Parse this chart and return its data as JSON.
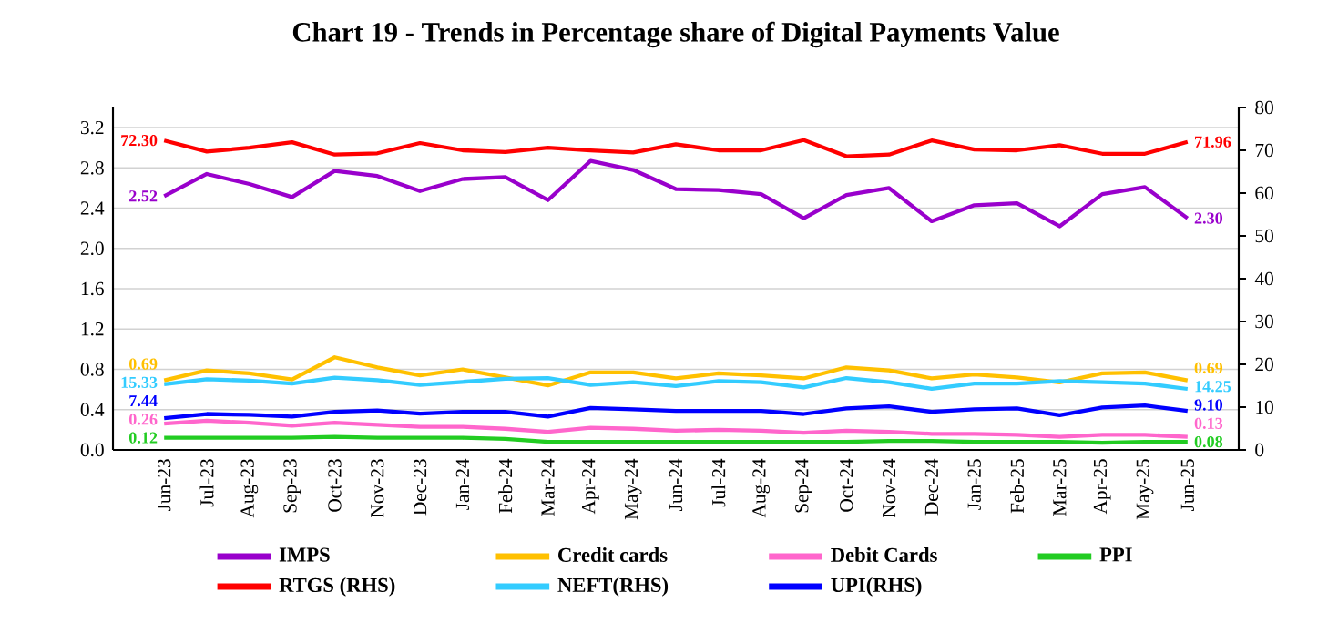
{
  "chart_data": {
    "type": "line",
    "title": "Chart 19 - Trends in Percentage share of Digital Payments Value",
    "categories": [
      "Jun-23",
      "Jul-23",
      "Aug-23",
      "Sep-23",
      "Oct-23",
      "Nov-23",
      "Dec-23",
      "Jan-24",
      "Feb-24",
      "Mar-24",
      "Apr-24",
      "May-24",
      "Jun-24",
      "Jul-24",
      "Aug-24",
      "Sep-24",
      "Oct-24",
      "Nov-24",
      "Dec-24",
      "Jan-25",
      "Feb-25",
      "Mar-25",
      "Apr-25",
      "May-25",
      "Jun-25"
    ],
    "series": [
      {
        "name": "IMPS",
        "color": "#9900cc",
        "values": [
          2.52,
          2.74,
          2.64,
          2.51,
          2.77,
          2.72,
          2.57,
          2.69,
          2.71,
          2.48,
          2.87,
          2.78,
          2.59,
          2.58,
          2.54,
          2.3,
          2.53,
          2.6,
          2.27,
          2.43,
          2.45,
          2.22,
          2.54,
          2.61,
          2.3
        ],
        "value_labels": [
          "2.52",
          null,
          null,
          null,
          null,
          null,
          null,
          null,
          null,
          null,
          null,
          null,
          null,
          null,
          null,
          null,
          null,
          null,
          null,
          null,
          null,
          null,
          null,
          null,
          "2.30"
        ]
      },
      {
        "name": "Credit cards",
        "color": "#ffc000",
        "values": [
          0.69,
          0.79,
          0.76,
          0.7,
          0.92,
          0.82,
          0.74,
          0.8,
          0.72,
          0.64,
          0.77,
          0.77,
          0.71,
          0.76,
          0.74,
          0.71,
          0.82,
          0.79,
          0.71,
          0.75,
          0.72,
          0.67,
          0.76,
          0.77,
          0.69
        ],
        "value_labels": [
          "0.69",
          null,
          null,
          null,
          null,
          null,
          null,
          null,
          null,
          null,
          null,
          null,
          null,
          null,
          null,
          null,
          null,
          null,
          null,
          null,
          null,
          null,
          null,
          null,
          "0.69"
        ]
      },
      {
        "name": "Debit Cards",
        "color": "#ff66cc",
        "values": [
          0.26,
          0.29,
          0.27,
          0.24,
          0.27,
          0.25,
          0.23,
          0.23,
          0.21,
          0.18,
          0.22,
          0.21,
          0.19,
          0.2,
          0.19,
          0.17,
          0.19,
          0.18,
          0.16,
          0.16,
          0.15,
          0.13,
          0.15,
          0.15,
          0.13
        ],
        "value_labels": [
          "0.26",
          null,
          null,
          null,
          null,
          null,
          null,
          null,
          null,
          null,
          null,
          null,
          null,
          null,
          null,
          null,
          null,
          null,
          null,
          null,
          null,
          null,
          null,
          null,
          "0.13"
        ]
      },
      {
        "name": "PPI",
        "color": "#22cc22",
        "values": [
          0.12,
          0.12,
          0.12,
          0.12,
          0.13,
          0.12,
          0.12,
          0.12,
          0.11,
          0.08,
          0.08,
          0.08,
          0.08,
          0.08,
          0.08,
          0.08,
          0.08,
          0.09,
          0.09,
          0.08,
          0.08,
          0.08,
          0.07,
          0.08,
          0.08
        ],
        "value_labels": [
          "0.12",
          null,
          null,
          null,
          null,
          null,
          null,
          null,
          null,
          null,
          null,
          null,
          null,
          null,
          null,
          null,
          null,
          null,
          null,
          null,
          null,
          null,
          null,
          null,
          "0.08"
        ]
      },
      {
        "name": "RTGS (RHS)",
        "color": "#ff0000",
        "axis": "y2",
        "values": [
          72.3,
          69.7,
          70.6,
          71.9,
          69.0,
          69.3,
          71.7,
          70.0,
          69.6,
          70.6,
          70.0,
          69.5,
          71.4,
          70.0,
          70.0,
          72.4,
          68.6,
          69.0,
          72.3,
          70.2,
          70.0,
          71.2,
          69.2,
          69.2,
          71.96
        ],
        "value_labels": [
          "72.30",
          null,
          null,
          null,
          null,
          null,
          null,
          null,
          null,
          null,
          null,
          null,
          null,
          null,
          null,
          null,
          null,
          null,
          null,
          null,
          null,
          null,
          null,
          null,
          "71.96"
        ]
      },
      {
        "name": "NEFT(RHS)",
        "color": "#33ccff",
        "axis": "y2",
        "values": [
          15.33,
          16.5,
          16.2,
          15.5,
          16.9,
          16.3,
          15.2,
          15.9,
          16.6,
          16.8,
          15.2,
          15.8,
          14.9,
          16.1,
          15.8,
          14.6,
          16.8,
          15.8,
          14.3,
          15.5,
          15.5,
          16.1,
          15.8,
          15.5,
          14.25
        ],
        "value_labels": [
          "15.33",
          null,
          null,
          null,
          null,
          null,
          null,
          null,
          null,
          null,
          null,
          null,
          null,
          null,
          null,
          null,
          null,
          null,
          null,
          null,
          null,
          null,
          null,
          null,
          "14.25"
        ]
      },
      {
        "name": "UPI(RHS)",
        "color": "#0000ff",
        "axis": "y2",
        "values": [
          7.44,
          8.4,
          8.2,
          7.8,
          8.9,
          9.2,
          8.5,
          8.9,
          8.9,
          7.8,
          9.8,
          9.5,
          9.1,
          9.1,
          9.1,
          8.4,
          9.7,
          10.2,
          8.9,
          9.5,
          9.7,
          8.1,
          9.9,
          10.4,
          9.1
        ],
        "value_labels": [
          "7.44",
          null,
          null,
          null,
          null,
          null,
          null,
          null,
          null,
          null,
          null,
          null,
          null,
          null,
          null,
          null,
          null,
          null,
          null,
          null,
          null,
          null,
          null,
          null,
          "9.10"
        ]
      }
    ],
    "ylim": [
      0,
      3.4
    ],
    "yticks": [
      {
        "value": 0,
        "label": "0.0"
      },
      {
        "value": 0.4,
        "label": "0.4"
      },
      {
        "value": 0.8,
        "label": "0.8"
      },
      {
        "value": 1.2,
        "label": "1.2"
      },
      {
        "value": 1.6,
        "label": "1.6"
      },
      {
        "value": 2.0,
        "label": "2.0"
      },
      {
        "value": 2.4,
        "label": "2.4"
      },
      {
        "value": 2.8,
        "label": "2.8"
      },
      {
        "value": 3.2,
        "label": "3.2"
      }
    ],
    "y2lim": [
      0,
      80
    ],
    "y2ticks": [
      0,
      10,
      20,
      30,
      40,
      50,
      60,
      70,
      80
    ],
    "grid": "y",
    "legend": "bottom",
    "marker": "none"
  }
}
